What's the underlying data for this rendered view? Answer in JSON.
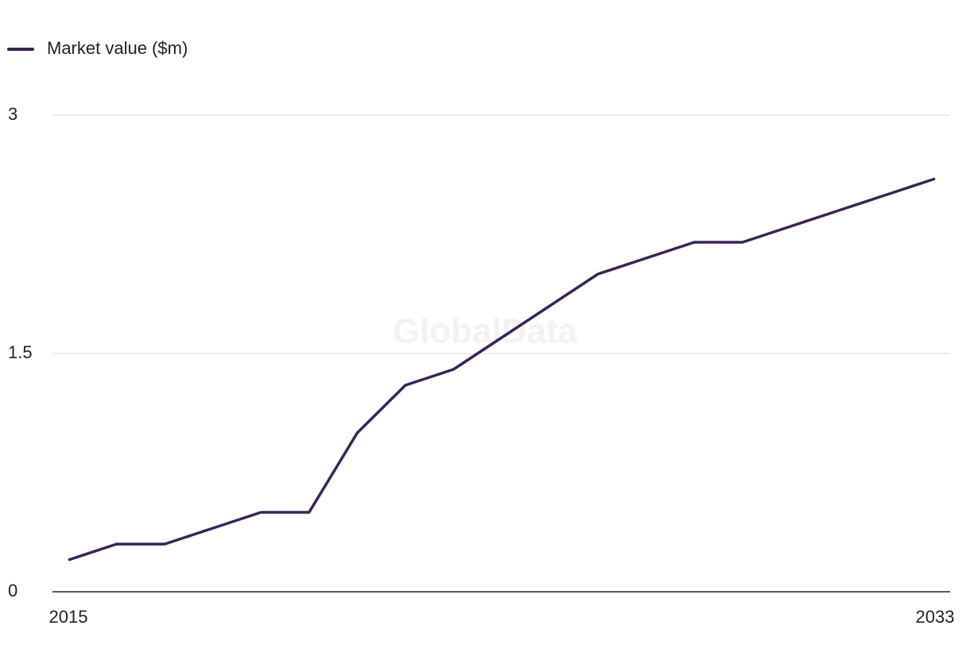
{
  "chart_data": {
    "type": "line",
    "watermark": "GlobalData",
    "x": [
      2015,
      2016,
      2017,
      2018,
      2019,
      2020,
      2021,
      2022,
      2023,
      2024,
      2025,
      2026,
      2027,
      2028,
      2029,
      2030,
      2031,
      2032,
      2033
    ],
    "series": [
      {
        "name": "Market value ($m)",
        "color": "#3a2456",
        "values": [
          0.2,
          0.3,
          0.3,
          0.4,
          0.5,
          0.5,
          1.0,
          1.3,
          1.4,
          1.6,
          1.8,
          2.0,
          2.1,
          2.2,
          2.2,
          2.3,
          2.4,
          2.5,
          2.6
        ]
      }
    ],
    "xlim": [
      2015,
      2033
    ],
    "xticks": [
      2015,
      2033
    ],
    "ylim": [
      0,
      3
    ],
    "yticks": [
      0,
      1.5,
      3
    ],
    "grid": true,
    "legend": "top-left"
  }
}
